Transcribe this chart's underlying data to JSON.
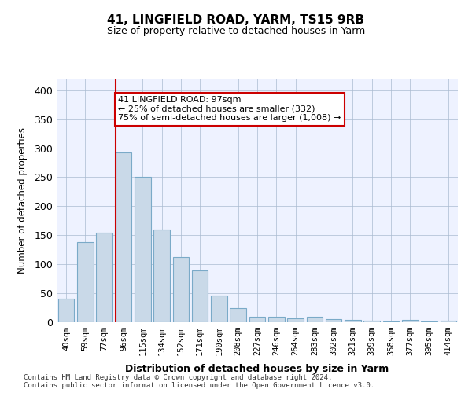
{
  "title1": "41, LINGFIELD ROAD, YARM, TS15 9RB",
  "title2": "Size of property relative to detached houses in Yarm",
  "xlabel": "Distribution of detached houses by size in Yarm",
  "ylabel": "Number of detached properties",
  "categories": [
    "40sqm",
    "59sqm",
    "77sqm",
    "96sqm",
    "115sqm",
    "134sqm",
    "152sqm",
    "171sqm",
    "190sqm",
    "208sqm",
    "227sqm",
    "246sqm",
    "264sqm",
    "283sqm",
    "302sqm",
    "321sqm",
    "339sqm",
    "358sqm",
    "377sqm",
    "395sqm",
    "414sqm"
  ],
  "values": [
    40,
    138,
    155,
    293,
    250,
    160,
    113,
    90,
    46,
    25,
    10,
    10,
    7,
    10,
    5,
    4,
    3,
    2,
    4,
    2,
    3
  ],
  "bar_color": "#c9d9e8",
  "bar_edge_color": "#7aaac8",
  "ylim": [
    0,
    420
  ],
  "yticks": [
    0,
    50,
    100,
    150,
    200,
    250,
    300,
    350,
    400
  ],
  "property_line_x": 3,
  "annotation_text": "41 LINGFIELD ROAD: 97sqm\n← 25% of detached houses are smaller (332)\n75% of semi-detached houses are larger (1,008) →",
  "annotation_box_color": "#ffffff",
  "annotation_box_edge_color": "#cc0000",
  "vline_color": "#cc0000",
  "footnote": "Contains HM Land Registry data © Crown copyright and database right 2024.\nContains public sector information licensed under the Open Government Licence v3.0.",
  "bg_color": "#f0f4ff",
  "plot_bg_color": "#eef2ff"
}
